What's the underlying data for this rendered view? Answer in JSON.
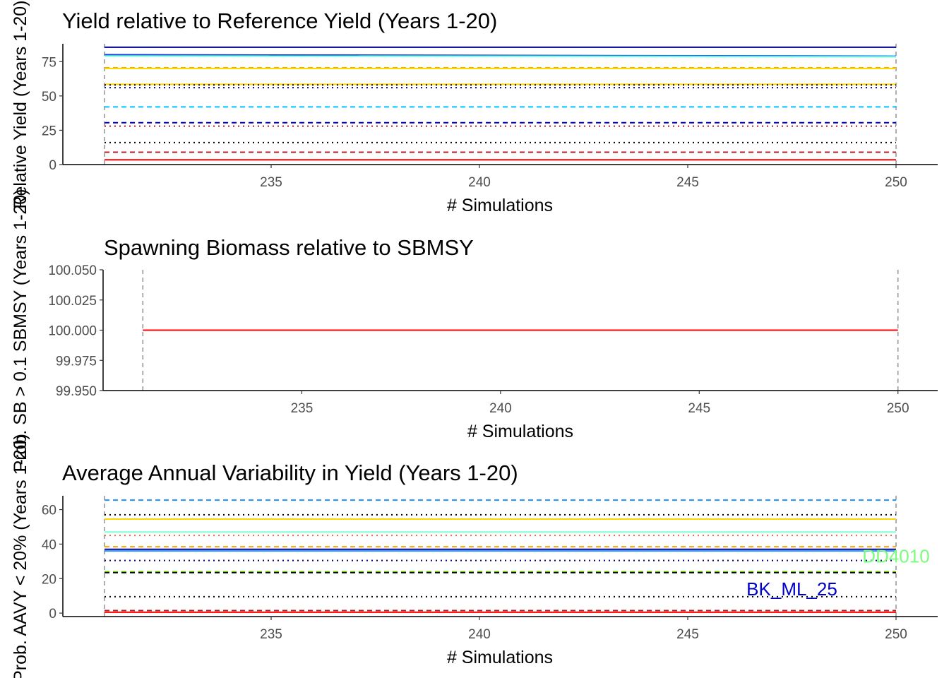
{
  "chart_data": [
    {
      "type": "line",
      "title": "Yield relative to Reference Yield (Years 1-20)",
      "xlabel": "# Simulations",
      "ylabel": "Relative Yield (Years 1-20)",
      "xlim": [
        230,
        251
      ],
      "ylim": [
        0,
        88
      ],
      "xticks": [
        235,
        240,
        245,
        250
      ],
      "yticks": [
        0,
        25,
        50,
        75
      ],
      "vlines": [
        231,
        250
      ],
      "legend": "none",
      "x": [
        231,
        250
      ],
      "series": [
        {
          "color": "#00008B",
          "dash": "solid",
          "values": [
            85.5,
            85.5
          ]
        },
        {
          "color": "#0000CD",
          "dash": "solid",
          "values": [
            80,
            79
          ]
        },
        {
          "color": "#1E90FF",
          "dash": "solid",
          "values": [
            79.5,
            79
          ]
        },
        {
          "color": "#7FFFD4",
          "dash": "solid",
          "values": [
            79,
            78.5
          ]
        },
        {
          "color": "#FFA500",
          "dash": "dashed",
          "values": [
            70.5,
            70.5
          ]
        },
        {
          "color": "#FFD700",
          "dash": "solid",
          "values": [
            70,
            70
          ]
        },
        {
          "color": "#FFD700",
          "dash": "solid",
          "values": [
            58.5,
            58.5
          ]
        },
        {
          "color": "#000000",
          "dash": "dotted",
          "values": [
            58,
            58
          ]
        },
        {
          "color": "#00008B",
          "dash": "dotted",
          "values": [
            56,
            56
          ]
        },
        {
          "color": "#00BFFF",
          "dash": "dashed",
          "values": [
            42,
            42
          ]
        },
        {
          "color": "#0000CD",
          "dash": "dashed",
          "values": [
            30.5,
            30.5
          ]
        },
        {
          "color": "#B22222",
          "dash": "dotted",
          "values": [
            28,
            28
          ]
        },
        {
          "color": "#000000",
          "dash": "dotted",
          "values": [
            16,
            16
          ]
        },
        {
          "color": "#B22222",
          "dash": "dashed",
          "values": [
            9,
            9
          ]
        },
        {
          "color": "#FF0000",
          "dash": "solid",
          "values": [
            3.5,
            3.5
          ]
        }
      ]
    },
    {
      "type": "line",
      "title": "Spawning Biomass relative to SBMSY",
      "xlabel": "# Simulations",
      "ylabel": "Prob. SB > 0.1 SBMSY (Years 1-20)",
      "xlim": [
        230,
        251
      ],
      "ylim": [
        99.95,
        100.05
      ],
      "xticks": [
        235,
        240,
        245,
        250
      ],
      "yticks": [
        "99.950",
        "99.975",
        "100.000",
        "100.025",
        "100.050"
      ],
      "vlines": [
        231,
        250
      ],
      "legend": "none",
      "x": [
        231,
        250
      ],
      "series": [
        {
          "color": "#FF0000",
          "dash": "solid",
          "values": [
            100.0,
            100.0
          ]
        }
      ]
    },
    {
      "type": "line",
      "title": "Average Annual Variability in Yield (Years 1-20)",
      "xlabel": "# Simulations",
      "ylabel": "Prob. AAVY < 20% (Years 1-20)",
      "xlim": [
        230,
        251
      ],
      "ylim": [
        -2,
        68
      ],
      "xticks": [
        235,
        240,
        245,
        250
      ],
      "yticks": [
        0,
        20,
        40,
        60
      ],
      "vlines": [
        231,
        250
      ],
      "legend": "none",
      "x": [
        231,
        250
      ],
      "series": [
        {
          "color": "#1E90FF",
          "dash": "dashed",
          "values": [
            65.5,
            65.5
          ]
        },
        {
          "color": "#000000",
          "dash": "dotted",
          "values": [
            57,
            57
          ]
        },
        {
          "color": "#FFD700",
          "dash": "solid",
          "values": [
            54.5,
            54.5
          ]
        },
        {
          "color": "#7FFFD4",
          "dash": "solid",
          "values": [
            47,
            47
          ]
        },
        {
          "color": "#FF6347",
          "dash": "dotted",
          "values": [
            45,
            45
          ]
        },
        {
          "color": "#FFA500",
          "dash": "dashed",
          "values": [
            38.5,
            38.5
          ]
        },
        {
          "color": "#00008B",
          "dash": "solid",
          "values": [
            37,
            37
          ]
        },
        {
          "color": "#1E90FF",
          "dash": "solid",
          "values": [
            36,
            36
          ]
        },
        {
          "color": "#00008B",
          "dash": "dotted",
          "values": [
            30.5,
            30.5
          ]
        },
        {
          "color": "#7CFC00",
          "dash": "dashed",
          "values": [
            24,
            24
          ]
        },
        {
          "color": "#000000",
          "dash": "dashed",
          "values": [
            23.5,
            23.5
          ]
        },
        {
          "color": "#000000",
          "dash": "dotted",
          "values": [
            9.5,
            9.5
          ]
        },
        {
          "color": "#FF0000",
          "dash": "solid",
          "values": [
            0.5,
            0.5
          ]
        },
        {
          "color": "#B22222",
          "dash": "dashed",
          "values": [
            1.5,
            1.5
          ]
        }
      ],
      "annotations": [
        {
          "text": "DD4010",
          "color": "#7CFC7C",
          "x": 250,
          "y": 33
        },
        {
          "text": "BK_ML_25",
          "color": "#0000CD",
          "x": 247.5,
          "y": 14
        }
      ]
    }
  ]
}
